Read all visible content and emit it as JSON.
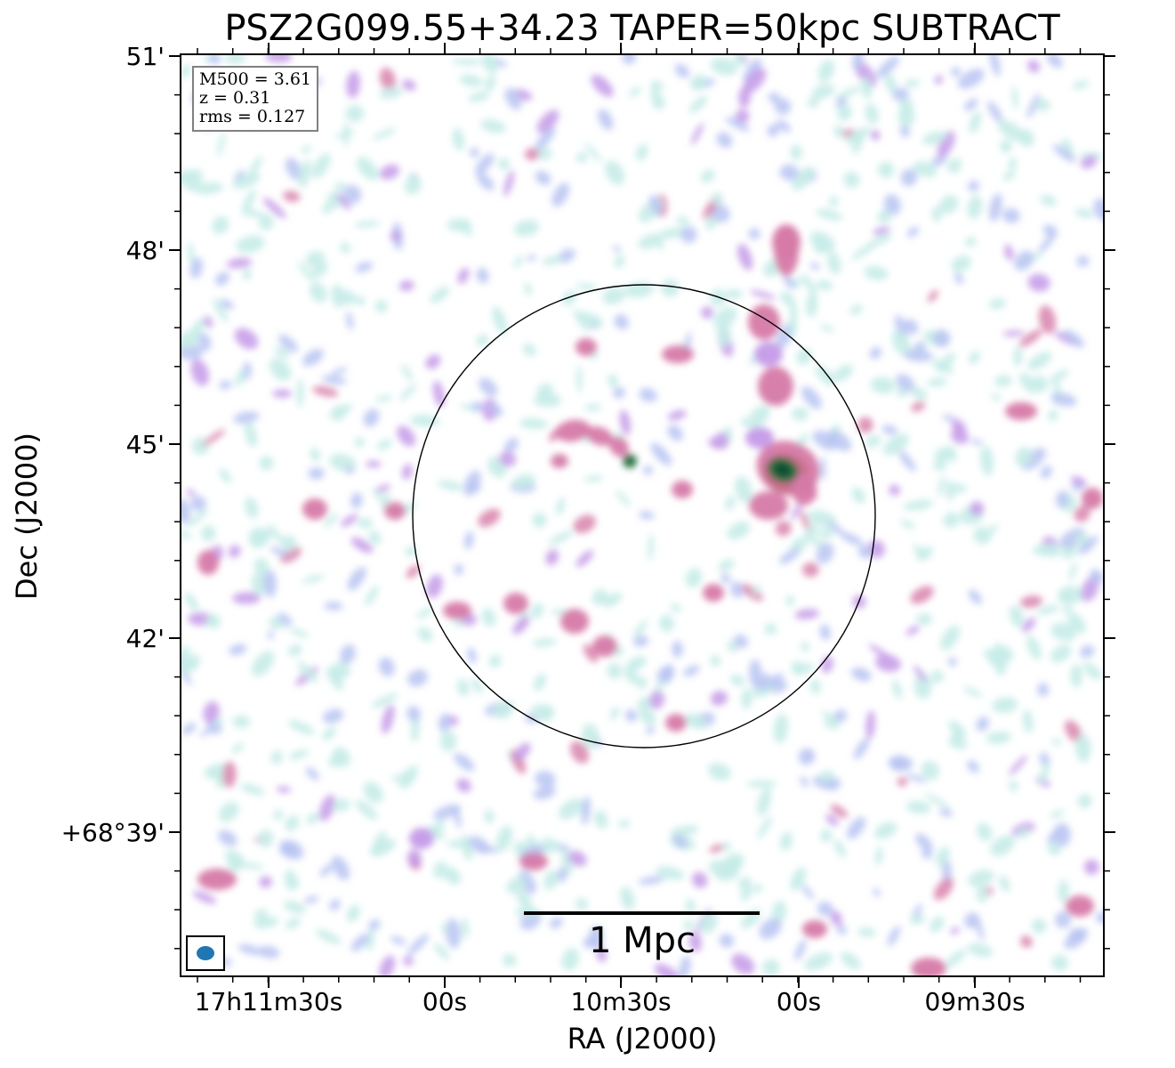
{
  "chart_data": {
    "type": "heatmap",
    "title": "PSZ2G099.55+34.23 TAPER=50kpc SUBTRACT",
    "xlabel": "RA (J2000)",
    "ylabel": "Dec (J2000)",
    "x_tick_labels": [
      "17h11m30s",
      "00s",
      "10m30s",
      "00s",
      "09m30s"
    ],
    "y_tick_labels": [
      "51'",
      "48'",
      "45'",
      "42'",
      "+68°39'"
    ],
    "annotation": {
      "lines": [
        "M500 = 3.61",
        "z = 0.31",
        "rms = 0.127"
      ]
    },
    "scale_bar_label": "1 Mpc",
    "colormap": [
      "#c6ece8",
      "#b9c4f2",
      "#c49ae8",
      "#d67aa8",
      "#c86f8a",
      "#1f6f3c",
      "#0d4a34"
    ],
    "circle_color": "#000000",
    "beam_color": "#1f77b4",
    "grid": false,
    "legend": "none"
  }
}
